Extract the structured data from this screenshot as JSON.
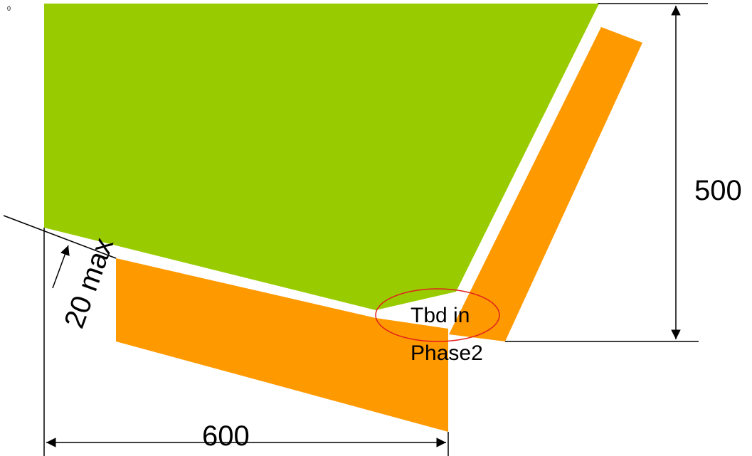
{
  "corner_mark": "0",
  "dimensions": {
    "height_label": "500",
    "width_label": "600",
    "gap_label": "20 max"
  },
  "note": {
    "line1": "Tbd in",
    "line2": "Phase2"
  },
  "colors": {
    "green_panel": "#99cc00",
    "orange_strip": "#ff9900",
    "highlight_circle": "#e0201c",
    "dimension_lines": "#000000"
  }
}
